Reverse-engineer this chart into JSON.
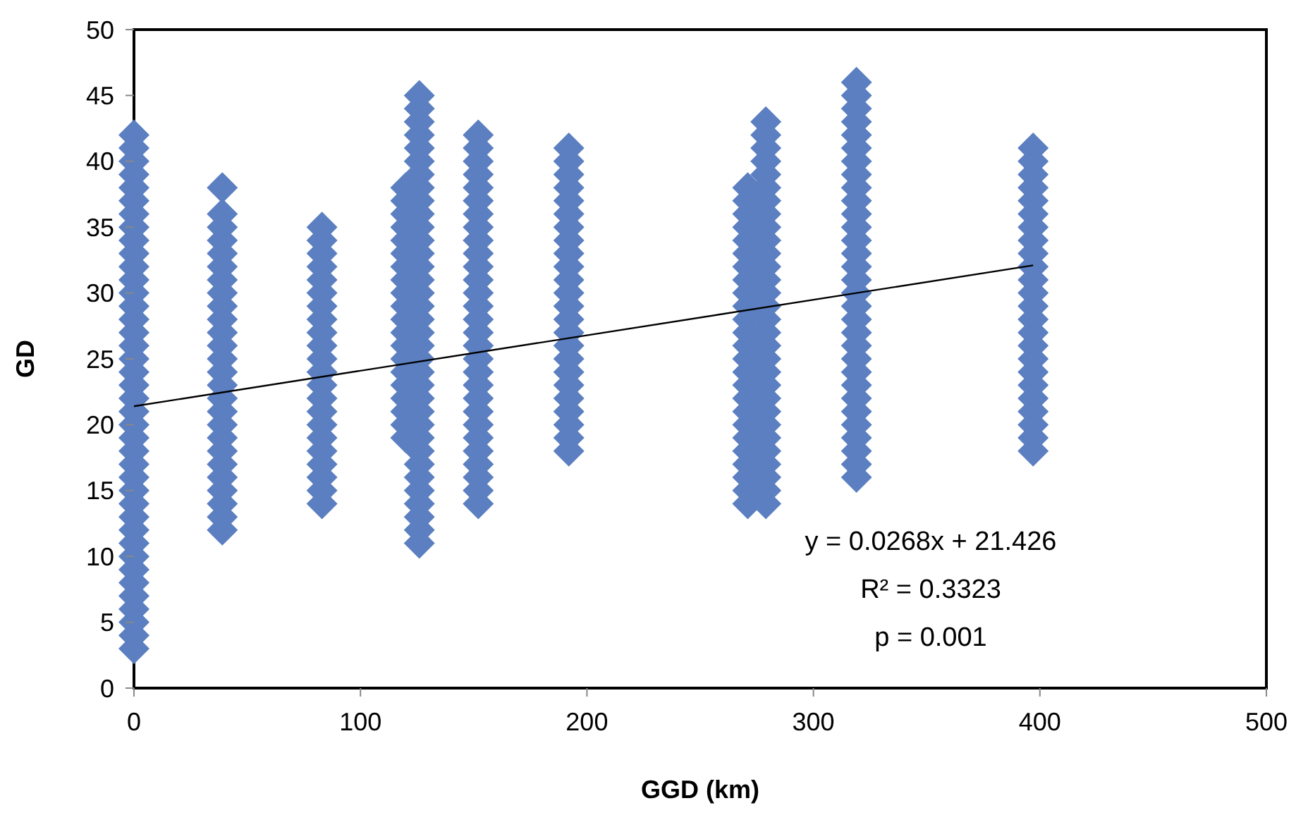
{
  "chart_data": {
    "type": "scatter",
    "xlabel": "GGD (km)",
    "ylabel": "GD",
    "xlim": [
      0,
      500
    ],
    "xticks": [
      0,
      100,
      200,
      300,
      400,
      500
    ],
    "ylim": [
      0,
      50
    ],
    "yticks": [
      0,
      5,
      10,
      15,
      20,
      25,
      30,
      35,
      40,
      45,
      50
    ],
    "grid": false,
    "marker": "diamond",
    "series": [
      {
        "color": "#5b7fc1",
        "x": [
          0,
          0,
          0,
          0,
          0,
          0,
          0,
          0,
          0,
          0,
          0,
          0,
          0,
          0,
          0,
          0,
          0,
          0,
          0,
          0,
          0,
          0,
          0,
          0,
          0,
          0,
          0,
          0,
          0,
          0,
          0,
          0,
          0,
          0,
          0,
          0,
          0,
          0,
          0,
          0,
          39,
          39,
          39,
          39,
          39,
          39,
          39,
          39,
          39,
          39,
          39,
          39,
          39,
          39,
          39,
          39,
          39,
          39,
          39,
          39,
          39,
          39,
          39,
          39,
          39,
          39,
          83,
          83,
          83,
          83,
          83,
          83,
          83,
          83,
          83,
          83,
          83,
          83,
          83,
          83,
          83,
          83,
          83,
          83,
          83,
          83,
          83,
          83,
          120,
          120,
          120,
          120,
          120,
          120,
          120,
          120,
          120,
          120,
          120,
          120,
          120,
          120,
          120,
          120,
          120,
          120,
          120,
          120,
          126,
          126,
          126,
          126,
          126,
          126,
          126,
          126,
          126,
          126,
          126,
          126,
          126,
          126,
          126,
          126,
          126,
          126,
          126,
          126,
          126,
          126,
          126,
          126,
          126,
          126,
          126,
          126,
          126,
          126,
          126,
          126,
          126,
          126,
          126,
          152,
          152,
          152,
          152,
          152,
          152,
          152,
          152,
          152,
          152,
          152,
          152,
          152,
          152,
          152,
          152,
          152,
          152,
          152,
          152,
          152,
          152,
          152,
          152,
          152,
          152,
          152,
          152,
          152,
          192,
          192,
          192,
          192,
          192,
          192,
          192,
          192,
          192,
          192,
          192,
          192,
          192,
          192,
          192,
          192,
          192,
          192,
          192,
          192,
          192,
          192,
          192,
          192,
          271,
          271,
          271,
          271,
          271,
          271,
          271,
          271,
          271,
          271,
          271,
          271,
          271,
          271,
          271,
          271,
          271,
          271,
          271,
          271,
          271,
          271,
          271,
          271,
          271,
          279,
          279,
          279,
          279,
          279,
          279,
          279,
          279,
          279,
          279,
          279,
          279,
          279,
          279,
          279,
          279,
          279,
          279,
          279,
          279,
          279,
          279,
          279,
          279,
          279,
          279,
          279,
          279,
          279,
          279,
          319,
          319,
          319,
          319,
          319,
          319,
          319,
          319,
          319,
          319,
          319,
          319,
          319,
          319,
          319,
          319,
          319,
          319,
          319,
          319,
          319,
          319,
          319,
          319,
          319,
          319,
          319,
          319,
          319,
          319,
          319,
          397,
          397,
          397,
          397,
          397,
          397,
          397,
          397,
          397,
          397,
          397,
          397,
          397,
          397,
          397,
          397,
          397,
          397,
          397,
          397,
          397,
          397,
          397,
          397
        ],
        "values": [
          3,
          4,
          5,
          6,
          7,
          8,
          9,
          10,
          11,
          12,
          13,
          14,
          15,
          16,
          17,
          18,
          19,
          20,
          21,
          22,
          23,
          24,
          25,
          26,
          27,
          28,
          29,
          30,
          31,
          32,
          33,
          34,
          35,
          36,
          37,
          38,
          39,
          40,
          41,
          42,
          12,
          13,
          14,
          15,
          16,
          17,
          18,
          19,
          20,
          21,
          22,
          23,
          24,
          25,
          26,
          27,
          28,
          29,
          30,
          31,
          32,
          33,
          34,
          35,
          36,
          38,
          14,
          15,
          16,
          17,
          18,
          19,
          20,
          21,
          22,
          23,
          24,
          25,
          26,
          27,
          28,
          29,
          30,
          31,
          32,
          33,
          34,
          35,
          19,
          20,
          21,
          22,
          23,
          24,
          25,
          26,
          27,
          28,
          29,
          30,
          31,
          32,
          33,
          34,
          35,
          36,
          37,
          38,
          11,
          12,
          13,
          14,
          15,
          16,
          17,
          18,
          19,
          20,
          21,
          22,
          23,
          24,
          25,
          26,
          27,
          28,
          29,
          30,
          31,
          32,
          33,
          34,
          35,
          36,
          37,
          38,
          39,
          40,
          41,
          42,
          43,
          44,
          45,
          14,
          15,
          16,
          17,
          18,
          19,
          20,
          21,
          22,
          23,
          24,
          25,
          26,
          27,
          28,
          29,
          30,
          31,
          32,
          33,
          34,
          35,
          36,
          37,
          38,
          39,
          40,
          41,
          42,
          18,
          19,
          20,
          21,
          22,
          23,
          24,
          25,
          26,
          27,
          28,
          29,
          30,
          31,
          32,
          33,
          34,
          35,
          36,
          37,
          38,
          39,
          40,
          41,
          14,
          15,
          16,
          17,
          18,
          19,
          20,
          21,
          22,
          23,
          24,
          25,
          26,
          27,
          28,
          29,
          30,
          31,
          32,
          33,
          34,
          35,
          36,
          37,
          38,
          14,
          15,
          16,
          17,
          18,
          19,
          20,
          21,
          22,
          23,
          24,
          25,
          26,
          27,
          28,
          29,
          30,
          31,
          32,
          33,
          34,
          35,
          36,
          37,
          38,
          39,
          40,
          41,
          42,
          43,
          16,
          17,
          18,
          19,
          20,
          21,
          22,
          23,
          24,
          25,
          26,
          27,
          28,
          29,
          30,
          31,
          32,
          33,
          34,
          35,
          36,
          37,
          38,
          39,
          40,
          41,
          42,
          43,
          44,
          45,
          46,
          18,
          19,
          20,
          21,
          22,
          23,
          24,
          25,
          26,
          27,
          28,
          29,
          30,
          31,
          32,
          33,
          34,
          35,
          36,
          37,
          38,
          39,
          40,
          41
        ]
      },
      {
        "type": "line",
        "color": "#000000",
        "marker": "none",
        "x": [
          0,
          397
        ],
        "values": [
          21.4,
          32.1
        ]
      }
    ],
    "annotations": [
      "y = 0.0268x + 21.426",
      "R² = 0.3323",
      "p = 0.001"
    ]
  }
}
